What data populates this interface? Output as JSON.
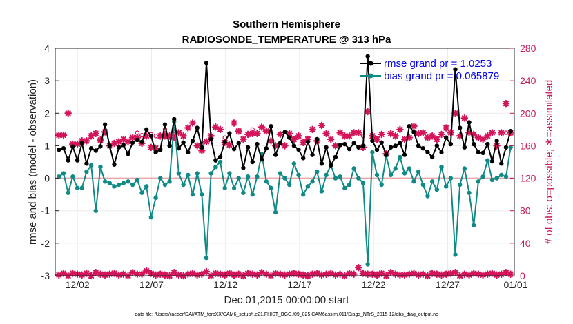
{
  "chart_data": {
    "type": "line",
    "title": "Southern Hemisphere",
    "subtitle": "RADIOSONDE_TEMPERATURE @ 313 hPa",
    "xlabel": "Dec.01,2015 00:00:00 start",
    "ylabel": "rmse and bias (model - observation)",
    "ylabel_right": "# of obs: o=possible; ∗=assimilated",
    "ylim": [
      -3,
      4
    ],
    "ylim_right": [
      0,
      280
    ],
    "xlim": [
      0.5,
      31.5
    ],
    "yticks": [
      "-3",
      "-2",
      "-1",
      "0",
      "1",
      "2",
      "3",
      "4"
    ],
    "yticks_right": [
      "0",
      "40",
      "80",
      "120",
      "160",
      "200",
      "240",
      "280"
    ],
    "xticks": [
      {
        "x": 2,
        "label": "12/02"
      },
      {
        "x": 7,
        "label": "12/07"
      },
      {
        "x": 12,
        "label": "12/12"
      },
      {
        "x": 17,
        "label": "12/17"
      },
      {
        "x": 22,
        "label": "12/22"
      },
      {
        "x": 27,
        "label": "12/27"
      },
      {
        "x": 32,
        "label": "01/01"
      }
    ],
    "footnote": "data file: /Users/raeder/DAI/ATM_forcXX/CAM6_setup/f.e21.FHIST_BGC.f09_025.CAM6assim.011/Diags_NTrS_2015-12/obs_diag_output.nc",
    "colors": {
      "rmse": "#000000",
      "bias": "#0f8a86",
      "obs": "#d4145a",
      "zero_line": "#e8a6a6"
    },
    "series": [
      {
        "name": "rmse",
        "legend": "rmse grand pr = 1.0253",
        "values": [
          0.88,
          0.92,
          0.55,
          0.97,
          0.55,
          1.08,
          0.45,
          0.92,
          0.85,
          0.98,
          1.65,
          1.0,
          0.42,
          0.95,
          1.02,
          0.75,
          1.1,
          1.18,
          1.12,
          1.5,
          1.3,
          0.8,
          0.88,
          1.65,
          1.0,
          1.82,
          0.92,
          1.1,
          0.8,
          1.15,
          1.55,
          0.95,
          3.55,
          1.2,
          0.55,
          0.65,
          1.12,
          1.38,
          0.9,
          1.08,
          0.32,
          0.95,
          0.5,
          1.05,
          0.58,
          0.92,
          1.6,
          0.72,
          1.08,
          1.42,
          1.25,
          1.0,
          0.88,
          0.62,
          1.12,
          0.72,
          1.2,
          0.45,
          0.95,
          0.4,
          0.65,
          1.02,
          1.05,
          0.9,
          1.08,
          0.95,
          1.0,
          3.75,
          1.15,
          0.88,
          1.1,
          0.72,
          0.95,
          1.0,
          1.08,
          0.72,
          1.6,
          1.42,
          1.0,
          0.92,
          0.8,
          0.65,
          1.0,
          0.8,
          1.25,
          1.05,
          3.35,
          1.55,
          0.95,
          1.72,
          1.05,
          0.8,
          0.78,
          1.05,
          0.52,
          1.15,
          0.45,
          0.95,
          1.45
        ]
      },
      {
        "name": "bias",
        "legend": "bias grand pr = 0.065879",
        "values": [
          0.05,
          0.15,
          -0.45,
          0.05,
          -0.3,
          -0.3,
          0.2,
          0.4,
          -1.0,
          0.35,
          -0.1,
          -0.15,
          -0.25,
          -0.2,
          -0.15,
          -0.1,
          -0.2,
          -0.05,
          -0.45,
          -0.25,
          -1.2,
          -0.6,
          0.0,
          -0.2,
          -0.1,
          1.75,
          0.15,
          -0.2,
          0.1,
          -0.5,
          0.15,
          -0.5,
          -2.45,
          0.15,
          0.35,
          0.5,
          -0.3,
          0.15,
          -0.3,
          0.0,
          -0.45,
          0.05,
          -0.5,
          0.05,
          0.75,
          -0.1,
          -0.3,
          -1.05,
          0.15,
          0.0,
          -0.2,
          0.45,
          0.1,
          -0.5,
          -0.25,
          -0.1,
          0.2,
          -0.4,
          0.1,
          0.4,
          0.0,
          0.05,
          -0.3,
          -0.2,
          0.3,
          0.0,
          -0.15,
          -2.65,
          0.8,
          0.1,
          -0.2,
          0.7,
          0.1,
          0.3,
          0.65,
          0.15,
          0.3,
          -0.1,
          0.2,
          -0.2,
          -0.55,
          -0.1,
          -0.35,
          0.35,
          -0.25,
          0.0,
          -2.35,
          -0.2,
          0.3,
          -0.45,
          -1.45,
          -0.1,
          0.05,
          0.55,
          -0.05,
          0.0,
          0.1,
          0.05,
          0.95
        ]
      },
      {
        "name": "obs_possible",
        "values": [
          173,
          173,
          200,
          162,
          162,
          164,
          166,
          172,
          175,
          167,
          176,
          160,
          163,
          165,
          168,
          165,
          170,
          176,
          173,
          170,
          174,
          172,
          172,
          180,
          172,
          178,
          176,
          170,
          180,
          188,
          160,
          162,
          165,
          172,
          183,
          180,
          170,
          160,
          188,
          176,
          168,
          174,
          180,
          175,
          183,
          178,
          166,
          160,
          174,
          160,
          175,
          168,
          172,
          164,
          168,
          180,
          166,
          185,
          175,
          168,
          160,
          176,
          172,
          172,
          176,
          176,
          172,
          200,
          172,
          168,
          174,
          150,
          175,
          172,
          180,
          168,
          170,
          184,
          175,
          176,
          170,
          172,
          168,
          174,
          182,
          176,
          200,
          172,
          192,
          176,
          174,
          170,
          168,
          172,
          176,
          160,
          176,
          176,
          176
        ]
      },
      {
        "name": "obs_assimilated",
        "values": [
          1,
          3,
          0,
          3,
          2,
          1,
          3,
          0,
          4,
          2,
          1,
          2,
          3,
          1,
          2,
          0,
          4,
          2,
          2,
          6,
          3,
          1,
          2,
          1,
          0,
          4,
          1,
          0,
          2,
          3,
          1,
          2,
          5,
          0,
          3,
          2,
          1,
          3,
          1,
          2,
          0,
          3,
          2,
          1,
          4,
          2,
          0,
          3,
          2,
          1,
          2,
          3,
          2,
          1,
          0,
          2,
          3,
          1,
          2,
          3,
          1,
          2,
          0,
          3,
          2,
          10,
          3,
          2,
          2,
          1,
          3,
          0,
          4,
          2,
          1,
          1,
          2,
          3,
          1,
          2,
          0,
          3,
          2,
          1,
          2,
          3,
          4,
          0,
          2,
          1,
          3,
          2,
          1,
          2,
          3,
          1,
          2,
          4,
          2
        ]
      },
      {
        "name": "obs_assimilated_upper",
        "values": [
          173,
          173,
          200,
          162,
          162,
          166,
          166,
          172,
          175,
          167,
          177,
          160,
          163,
          165,
          168,
          165,
          170,
          170,
          163,
          172,
          158,
          157,
          172,
          172,
          172,
          170,
          176,
          172,
          182,
          188,
          160,
          154,
          165,
          172,
          183,
          180,
          164,
          161,
          188,
          178,
          168,
          174,
          175,
          175,
          183,
          178,
          166,
          160,
          174,
          160,
          175,
          168,
          172,
          164,
          168,
          180,
          166,
          185,
          175,
          168,
          160,
          176,
          172,
          172,
          176,
          176,
          158,
          202,
          172,
          168,
          174,
          150,
          175,
          172,
          180,
          168,
          170,
          184,
          175,
          176,
          170,
          172,
          168,
          174,
          182,
          176,
          200,
          172,
          194,
          176,
          174,
          170,
          168,
          172,
          176,
          160,
          176,
          212,
          176
        ]
      }
    ],
    "legend_position": "top-right"
  }
}
